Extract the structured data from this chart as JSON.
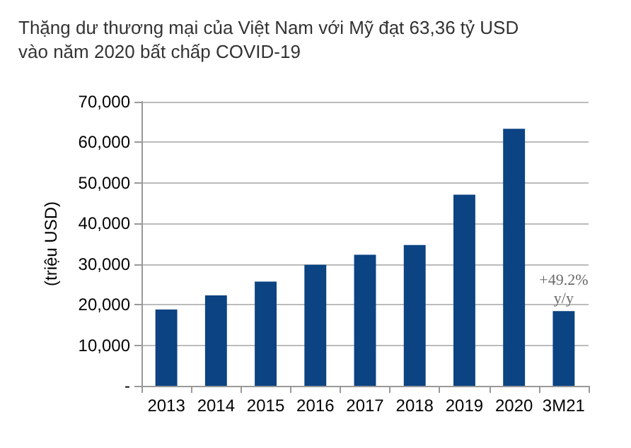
{
  "chart_data": {
    "type": "bar",
    "title": "Thặng dư thương mại của Việt Nam với Mỹ đạt 63,36 tỷ USD\nvào năm 2020 bất chấp COVID-19",
    "ylabel": "(triệu USD)",
    "categories": [
      "2013",
      "2014",
      "2015",
      "2016",
      "2017",
      "2018",
      "2019",
      "2020",
      "3M21"
    ],
    "values": [
      18800,
      22300,
      25700,
      29800,
      32300,
      34700,
      47100,
      63360,
      18400
    ],
    "color": "#0b4383",
    "ylim": [
      0,
      70000
    ],
    "yticks": [
      {
        "value": 0,
        "label": "-"
      },
      {
        "value": 10000,
        "label": "10,000"
      },
      {
        "value": 20000,
        "label": "20,000"
      },
      {
        "value": 30000,
        "label": "30,000"
      },
      {
        "value": 40000,
        "label": "40,000"
      },
      {
        "value": 50000,
        "label": "50,000"
      },
      {
        "value": 60000,
        "label": "60,000"
      },
      {
        "value": 70000,
        "label": "70,000"
      }
    ],
    "grid": "y",
    "annotations": [
      {
        "text": "+49.2%\ny/y",
        "x": "3M21",
        "y": 18400
      }
    ]
  }
}
